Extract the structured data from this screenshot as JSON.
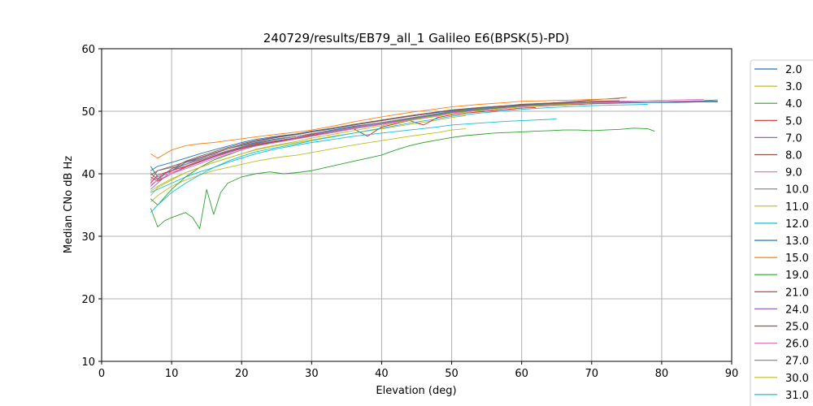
{
  "chart_data": {
    "type": "line",
    "title": "240729/results/EB79_all_1 Galileo E6(BPSK(5)-PD)",
    "xlabel": "Elevation (deg)",
    "ylabel": "Median CNo dB Hz",
    "xlim": [
      0,
      90
    ],
    "ylim": [
      10,
      60
    ],
    "xticks": [
      "0",
      "10",
      "20",
      "30",
      "40",
      "50",
      "60",
      "70",
      "80",
      "90"
    ],
    "yticks": [
      "10",
      "20",
      "30",
      "40",
      "50",
      "60"
    ],
    "grid": true,
    "legend_position": "right",
    "series": [
      {
        "name": "2.0",
        "color": "#1f77b4",
        "x": [
          7,
          8,
          10,
          12,
          14,
          16,
          18,
          20,
          22,
          25,
          28,
          30,
          33,
          36,
          40,
          44,
          48,
          50,
          54,
          58,
          60,
          64,
          68,
          70,
          74,
          78,
          82,
          86,
          88
        ],
        "y": [
          41.2,
          39.5,
          40.5,
          41.8,
          42.5,
          43.2,
          44.0,
          44.5,
          45.0,
          45.6,
          46.0,
          46.4,
          47.0,
          47.6,
          48.2,
          48.9,
          49.6,
          49.9,
          50.3,
          50.6,
          50.8,
          51.0,
          51.1,
          51.2,
          51.3,
          51.4,
          51.4,
          51.5,
          51.5
        ]
      },
      {
        "name": "3.0",
        "color": "#bcbd22",
        "x": [
          7,
          8,
          10,
          12,
          14,
          16,
          18,
          20,
          22,
          25,
          28,
          30,
          33,
          36,
          40,
          44,
          48,
          50,
          52
        ],
        "y": [
          36.5,
          37.8,
          39.0,
          40.2,
          41.0,
          41.8,
          42.5,
          43.2,
          43.8,
          44.5,
          45.0,
          45.4,
          46.0,
          46.5,
          47.2,
          47.9,
          48.6,
          49.0,
          49.3
        ]
      },
      {
        "name": "4.0",
        "color": "#2ca02c",
        "x": [
          7,
          8,
          9,
          10,
          12,
          13,
          14,
          15,
          16,
          17,
          18,
          20,
          22,
          24,
          26,
          28,
          30,
          32,
          34,
          36,
          38,
          40,
          42,
          44,
          46,
          48,
          50,
          52,
          54,
          56,
          58,
          60,
          62,
          64,
          66,
          68,
          70,
          72,
          74,
          76,
          78,
          79
        ],
        "y": [
          34.5,
          31.5,
          32.5,
          33.0,
          33.8,
          33.0,
          31.2,
          37.5,
          33.5,
          37.0,
          38.5,
          39.5,
          40.0,
          40.3,
          40.0,
          40.2,
          40.5,
          41.0,
          41.5,
          42.0,
          42.5,
          43.0,
          43.8,
          44.5,
          45.0,
          45.4,
          45.8,
          46.1,
          46.3,
          46.5,
          46.6,
          46.7,
          46.8,
          46.9,
          47.0,
          47.0,
          46.9,
          47.0,
          47.1,
          47.3,
          47.2,
          46.8
        ]
      },
      {
        "name": "5.0",
        "color": "#d62728",
        "x": [
          7,
          8,
          10,
          12,
          14,
          16,
          18,
          20,
          22,
          25,
          28,
          30,
          33,
          36,
          38,
          40,
          42,
          44,
          46,
          48,
          50,
          52,
          55,
          58,
          60,
          62
        ],
        "y": [
          39.5,
          38.8,
          40.0,
          41.2,
          42.0,
          42.8,
          43.5,
          44.2,
          44.8,
          45.5,
          46.0,
          46.3,
          46.8,
          47.2,
          46.0,
          47.5,
          48.0,
          48.5,
          47.8,
          49.0,
          49.4,
          49.7,
          50.0,
          50.3,
          50.5,
          50.6
        ]
      },
      {
        "name": "7.0",
        "color": "#9467bd",
        "x": [
          7,
          8,
          10,
          12,
          14,
          16,
          18,
          20,
          22,
          25,
          28,
          30,
          33,
          36,
          40,
          44,
          48,
          50,
          54,
          58,
          60,
          64,
          68,
          70,
          74
        ],
        "y": [
          37.5,
          38.5,
          40.5,
          41.5,
          42.5,
          43.2,
          44.0,
          44.6,
          45.2,
          45.8,
          46.3,
          46.7,
          47.2,
          47.8,
          48.5,
          49.2,
          49.8,
          50.1,
          50.5,
          50.8,
          51.0,
          51.2,
          51.4,
          51.5,
          51.6
        ]
      },
      {
        "name": "8.0",
        "color": "#8c564b",
        "x": [
          7,
          8,
          10,
          12,
          14,
          16,
          18,
          20,
          22,
          25,
          28,
          30,
          33,
          36,
          40,
          44,
          48,
          50,
          54,
          58,
          60,
          64,
          68,
          70,
          75
        ],
        "y": [
          40.0,
          39.2,
          40.8,
          42.0,
          42.8,
          43.5,
          44.2,
          44.8,
          45.3,
          45.9,
          46.4,
          46.8,
          47.3,
          47.9,
          48.6,
          49.3,
          49.9,
          50.2,
          50.6,
          50.9,
          51.1,
          51.3,
          51.6,
          51.8,
          52.2
        ]
      },
      {
        "name": "9.0",
        "color": "#e377c2",
        "x": [
          7,
          8,
          10,
          12,
          14,
          16,
          18,
          20,
          22,
          25,
          28,
          30,
          33,
          36,
          40,
          44,
          48,
          50,
          54,
          58,
          60,
          64,
          68,
          70,
          74,
          78,
          82,
          86
        ],
        "y": [
          38.8,
          39.5,
          40.2,
          41.0,
          41.8,
          42.6,
          43.3,
          44.0,
          44.6,
          45.2,
          45.8,
          46.2,
          46.8,
          47.4,
          48.1,
          48.8,
          49.5,
          49.9,
          50.3,
          50.7,
          50.9,
          51.2,
          51.4,
          51.5,
          51.6,
          51.7,
          51.8,
          51.9
        ]
      },
      {
        "name": "10.0",
        "color": "#7f7f7f",
        "x": [
          7,
          8,
          10,
          12,
          14,
          16,
          18,
          20,
          22,
          25,
          28,
          30,
          33,
          36,
          40,
          44,
          48,
          50,
          54,
          58,
          60,
          64,
          68,
          70
        ],
        "y": [
          39.0,
          40.5,
          41.0,
          41.5,
          42.2,
          43.0,
          43.6,
          44.3,
          44.9,
          45.5,
          46.0,
          46.4,
          46.9,
          47.5,
          48.2,
          48.9,
          49.6,
          49.9,
          50.3,
          50.6,
          50.8,
          51.0,
          51.2,
          51.3
        ]
      },
      {
        "name": "11.0",
        "color": "#bcbd22",
        "x": [
          7,
          8,
          10,
          12,
          14,
          16,
          18,
          20,
          22,
          25,
          28,
          30,
          33,
          36,
          40,
          44,
          48,
          50,
          52
        ],
        "y": [
          35.5,
          36.5,
          38.0,
          39.0,
          39.8,
          40.5,
          41.0,
          41.5,
          42.0,
          42.6,
          43.0,
          43.4,
          44.0,
          44.6,
          45.3,
          46.0,
          46.6,
          47.0,
          47.2
        ]
      },
      {
        "name": "12.0",
        "color": "#17becf",
        "x": [
          7,
          8,
          10,
          12,
          14,
          16,
          18,
          20,
          22,
          25,
          28,
          30,
          33,
          36,
          40,
          44,
          48,
          50,
          54,
          58,
          60,
          64,
          65
        ],
        "y": [
          37.0,
          37.5,
          38.5,
          39.5,
          40.3,
          41.0,
          41.8,
          42.5,
          43.2,
          44.0,
          44.6,
          45.0,
          45.5,
          46.0,
          46.5,
          47.0,
          47.5,
          47.8,
          48.1,
          48.4,
          48.5,
          48.7,
          48.8
        ]
      },
      {
        "name": "13.0",
        "color": "#1f77b4",
        "x": [
          7,
          8,
          10,
          12,
          14,
          16,
          18,
          20,
          22,
          25,
          28,
          30,
          33,
          36,
          40,
          44,
          48,
          50,
          54,
          58,
          60,
          64,
          68,
          70,
          74,
          78,
          82,
          86,
          88
        ],
        "y": [
          40.5,
          41.2,
          41.8,
          42.5,
          43.2,
          43.8,
          44.4,
          45.0,
          45.5,
          46.0,
          46.4,
          46.8,
          47.3,
          47.8,
          48.5,
          49.2,
          49.8,
          50.1,
          50.5,
          50.8,
          51.0,
          51.2,
          51.3,
          51.4,
          51.5,
          51.5,
          51.5,
          51.6,
          51.6
        ]
      },
      {
        "name": "15.0",
        "color": "#ff7f0e",
        "x": [
          7,
          8,
          10,
          12,
          14,
          16,
          18,
          20,
          22,
          25,
          28,
          30,
          33,
          36,
          40,
          44,
          48,
          50,
          54,
          58,
          60,
          64,
          68,
          70,
          74
        ],
        "y": [
          43.2,
          42.5,
          43.8,
          44.5,
          44.8,
          45.0,
          45.3,
          45.6,
          45.9,
          46.3,
          46.7,
          47.0,
          47.6,
          48.3,
          49.1,
          49.8,
          50.4,
          50.7,
          51.1,
          51.4,
          51.6,
          51.7,
          51.8,
          51.9,
          52.0
        ]
      },
      {
        "name": "19.0",
        "color": "#2ca02c",
        "x": [
          7,
          8,
          10,
          12,
          14,
          16,
          18,
          20,
          22,
          25,
          28,
          30,
          33,
          36,
          40,
          44,
          48,
          50,
          54,
          58,
          60,
          64,
          68,
          70,
          74,
          78,
          82,
          86,
          88
        ],
        "y": [
          36.0,
          35.0,
          37.5,
          39.5,
          41.0,
          42.2,
          43.0,
          43.8,
          44.5,
          45.1,
          45.6,
          46.0,
          46.6,
          47.2,
          48.0,
          48.8,
          49.5,
          49.9,
          50.3,
          50.7,
          50.9,
          51.1,
          51.2,
          51.3,
          51.4,
          51.5,
          51.6,
          51.7,
          51.8
        ]
      },
      {
        "name": "21.0",
        "color": "#d62728",
        "x": [
          7,
          8,
          10,
          12,
          14,
          16,
          18,
          20,
          22,
          25,
          28,
          30,
          33,
          36,
          40,
          44,
          48,
          50,
          54,
          58,
          60,
          64,
          68,
          70
        ],
        "y": [
          38.5,
          39.8,
          40.5,
          41.2,
          42.0,
          42.8,
          43.5,
          44.0,
          44.6,
          45.2,
          45.7,
          46.1,
          46.6,
          47.2,
          47.9,
          48.6,
          49.3,
          49.7,
          50.1,
          50.5,
          50.7,
          50.9,
          51.1,
          51.2
        ]
      },
      {
        "name": "24.0",
        "color": "#9467bd",
        "x": [
          7,
          8,
          10,
          12,
          14,
          16,
          18,
          20,
          22,
          25,
          28,
          30,
          33,
          36,
          40,
          44,
          48,
          50,
          54,
          58,
          60,
          64,
          68,
          70,
          74
        ],
        "y": [
          38.0,
          39.0,
          40.0,
          41.0,
          41.9,
          42.7,
          43.4,
          44.1,
          44.7,
          45.3,
          45.8,
          46.2,
          46.7,
          47.3,
          48.0,
          48.7,
          49.4,
          49.8,
          50.2,
          50.6,
          50.8,
          51.0,
          51.2,
          51.3,
          51.4
        ]
      },
      {
        "name": "25.0",
        "color": "#8c564b",
        "x": [
          7,
          8,
          10,
          12,
          14,
          16,
          18,
          20,
          22,
          25,
          28,
          30,
          33,
          36,
          40,
          44,
          48,
          50,
          54,
          58,
          60,
          64,
          68,
          70,
          74
        ],
        "y": [
          39.8,
          40.5,
          41.2,
          41.9,
          42.6,
          43.3,
          44.0,
          44.6,
          45.2,
          45.8,
          46.3,
          46.7,
          47.2,
          47.8,
          48.5,
          49.2,
          49.9,
          50.2,
          50.6,
          50.9,
          51.1,
          51.3,
          51.5,
          51.6,
          51.7
        ]
      },
      {
        "name": "26.0",
        "color": "#e377c2",
        "x": [
          7,
          8,
          10,
          12,
          14,
          16,
          18,
          20,
          22,
          25,
          28,
          30,
          33,
          36,
          40,
          44,
          48,
          50,
          54,
          58,
          60,
          64,
          68,
          70,
          74,
          78,
          82,
          86
        ],
        "y": [
          38.2,
          39.0,
          40.0,
          40.8,
          41.6,
          42.4,
          43.1,
          43.8,
          44.4,
          45.0,
          45.6,
          46.0,
          46.6,
          47.2,
          47.9,
          48.6,
          49.3,
          49.7,
          50.1,
          50.5,
          50.7,
          51.0,
          51.2,
          51.3,
          51.4,
          51.5,
          51.6,
          51.7
        ]
      },
      {
        "name": "27.0",
        "color": "#7f7f7f",
        "x": [
          7,
          8,
          10,
          12,
          14,
          16,
          18,
          20,
          22,
          25,
          28,
          30,
          33,
          36,
          40,
          44,
          48,
          50,
          54,
          58,
          60,
          64,
          68,
          70
        ],
        "y": [
          40.2,
          39.0,
          40.8,
          41.5,
          42.3,
          43.0,
          43.7,
          44.3,
          44.9,
          45.5,
          46.0,
          46.4,
          46.9,
          47.5,
          48.2,
          48.9,
          49.6,
          50.0,
          50.4,
          50.7,
          50.9,
          51.1,
          51.3,
          51.4
        ]
      },
      {
        "name": "30.0",
        "color": "#bcbd22",
        "x": [
          7,
          8,
          10,
          12,
          14,
          16,
          18,
          20,
          22,
          25,
          28,
          30,
          33,
          36,
          40,
          44,
          48,
          50,
          54,
          58,
          60,
          64,
          68,
          70
        ],
        "y": [
          37.2,
          38.0,
          39.2,
          40.2,
          41.0,
          41.8,
          42.5,
          43.2,
          43.9,
          44.6,
          45.2,
          45.7,
          46.3,
          46.9,
          47.7,
          48.5,
          49.2,
          49.6,
          50.1,
          50.5,
          50.7,
          51.0,
          51.2,
          51.3
        ]
      },
      {
        "name": "31.0",
        "color": "#17becf",
        "x": [
          7,
          8,
          10,
          12,
          14,
          16,
          18,
          20,
          22,
          25,
          28,
          30,
          33,
          36,
          40,
          44,
          48,
          50,
          54,
          58,
          60,
          64,
          68,
          70,
          74,
          78
        ],
        "y": [
          33.8,
          35.0,
          37.0,
          38.5,
          39.8,
          41.0,
          42.0,
          42.8,
          43.5,
          44.2,
          44.8,
          45.3,
          45.9,
          46.5,
          47.3,
          48.1,
          48.8,
          49.2,
          49.7,
          50.1,
          50.3,
          50.6,
          50.8,
          50.9,
          51.0,
          51.1
        ]
      }
    ]
  }
}
